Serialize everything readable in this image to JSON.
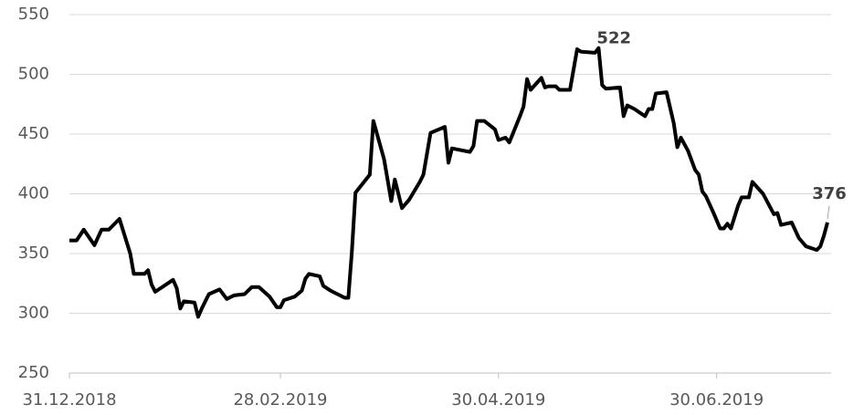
{
  "chart_data": {
    "type": "line",
    "x": [
      "31.12.2018",
      "02.01.2019",
      "04.01.2019",
      "07.01.2019",
      "09.01.2019",
      "11.01.2019",
      "14.01.2019",
      "17.01.2019",
      "18.01.2019",
      "21.01.2019",
      "22.01.2019",
      "23.01.2019",
      "24.01.2019",
      "29.01.2019",
      "30.01.2019",
      "31.01.2019",
      "01.02.2019",
      "04.02.2019",
      "05.02.2019",
      "06.02.2019",
      "08.02.2019",
      "11.02.2019",
      "13.02.2019",
      "15.02.2019",
      "18.02.2019",
      "20.02.2019",
      "22.02.2019",
      "25.02.2019",
      "27.02.2019",
      "28.02.2019",
      "01.03.2019",
      "04.03.2019",
      "06.03.2019",
      "07.03.2019",
      "08.03.2019",
      "11.03.2019",
      "12.03.2019",
      "14.03.2019",
      "18.03.2019",
      "19.03.2019",
      "20.03.2019",
      "21.03.2019",
      "25.03.2019",
      "26.03.2019",
      "29.03.2019",
      "31.03.2019",
      "01.04.2019",
      "03.04.2019",
      "05.04.2019",
      "08.04.2019",
      "09.04.2019",
      "11.04.2019",
      "15.04.2019",
      "16.04.2019",
      "17.04.2019",
      "22.04.2019",
      "23.04.2019",
      "24.04.2019",
      "26.04.2019",
      "29.04.2019",
      "30.04.2019",
      "02.05.2019",
      "03.05.2019",
      "06.05.2019",
      "07.05.2019",
      "08.05.2019",
      "09.05.2019",
      "12.05.2019",
      "13.05.2019",
      "14.05.2019",
      "16.05.2019",
      "17.05.2019",
      "20.05.2019",
      "22.05.2019",
      "23.05.2019",
      "27.05.2019",
      "28.05.2019",
      "29.05.2019",
      "30.05.2019",
      "03.06.2019",
      "04.06.2019",
      "05.06.2019",
      "07.06.2019",
      "10.06.2019",
      "11.06.2019",
      "12.06.2019",
      "13.06.2019",
      "16.06.2019",
      "18.06.2019",
      "19.06.2019",
      "20.06.2019",
      "22.06.2019",
      "24.06.2019",
      "25.06.2019",
      "26.06.2019",
      "27.06.2019",
      "29.06.2019",
      "01.07.2019",
      "02.07.2019",
      "03.07.2019",
      "04.07.2019",
      "06.07.2019",
      "07.07.2019",
      "09.07.2019",
      "10.07.2019",
      "13.07.2019",
      "16.07.2019",
      "17.07.2019",
      "18.07.2019",
      "21.07.2019",
      "23.07.2019",
      "25.07.2019",
      "28.07.2019",
      "29.07.2019",
      "30.07.2019",
      "31.07.2019"
    ],
    "series": [
      {
        "name": "Price",
        "color": "#000000",
        "values": [
          361,
          361,
          370,
          357,
          370,
          370,
          379,
          350,
          333,
          333,
          336,
          324,
          318,
          328,
          321,
          304,
          310,
          309,
          297,
          304,
          316,
          320,
          312,
          315,
          316,
          322,
          322,
          314,
          305,
          305,
          311,
          314,
          319,
          329,
          333,
          331,
          323,
          319,
          313,
          313,
          352,
          401,
          416,
          461,
          429,
          394,
          412,
          388,
          395,
          410,
          416,
          451,
          456,
          426,
          438,
          435,
          440,
          461,
          461,
          454,
          445,
          447,
          443,
          465,
          473,
          496,
          487,
          497,
          489,
          490,
          490,
          487,
          487,
          521,
          519,
          518,
          522,
          491,
          488,
          489,
          465,
          474,
          471,
          465,
          471,
          471,
          484,
          485,
          459,
          439,
          447,
          436,
          420,
          416,
          402,
          398,
          385,
          371,
          371,
          375,
          371,
          390,
          397,
          397,
          410,
          400,
          383,
          384,
          374,
          376,
          363,
          356,
          353,
          356,
          365,
          376
        ]
      }
    ],
    "xlim": [
      "31.12.2018",
      "31.07.2019"
    ],
    "xticks": [
      "31.12.2018",
      "28.02.2019",
      "30.04.2019",
      "30.06.2019"
    ],
    "ylim": [
      250,
      550
    ],
    "yticks": [
      250,
      300,
      350,
      400,
      450,
      500,
      550
    ],
    "grid": true,
    "annotations": [
      {
        "label": "522",
        "x": "28.05.2019",
        "y": 522
      },
      {
        "label": "376",
        "x": "31.07.2019",
        "y": 376
      }
    ]
  }
}
